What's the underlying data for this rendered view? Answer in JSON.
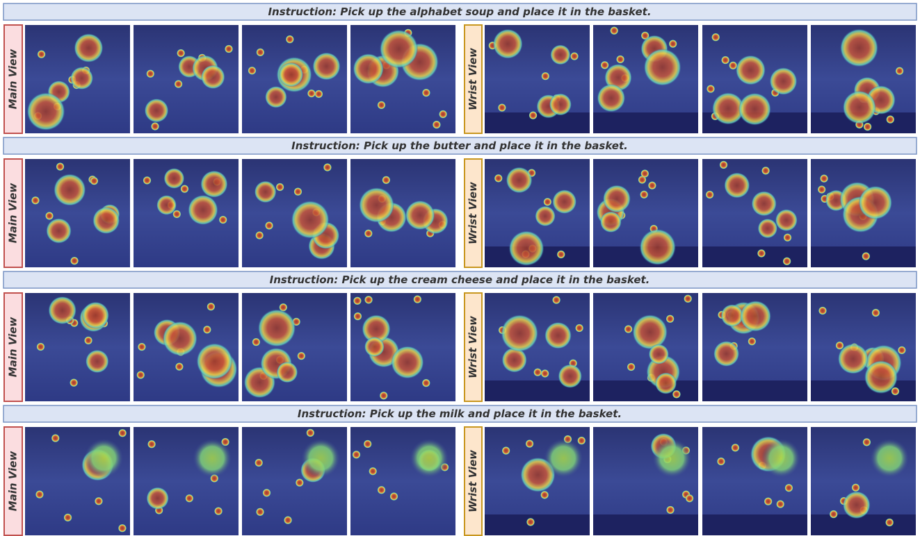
{
  "rows": [
    {
      "instruction": "Instruction: Pick up the alphabet soup and place it in the basket.",
      "main_label": "Main View",
      "wrist_label": "Wrist View"
    },
    {
      "instruction": "Instruction: Pick up the butter and place it in the basket.",
      "main_label": "Main View",
      "wrist_label": "Wrist View"
    },
    {
      "instruction": "Instruction: Pick up the cream cheese and place it in the basket.",
      "main_label": "Main View",
      "wrist_label": "Wrist View"
    },
    {
      "instruction": "Instruction: Pick up the milk and place it in the basket.",
      "main_label": "Main View",
      "wrist_label": "Wrist View"
    }
  ]
}
